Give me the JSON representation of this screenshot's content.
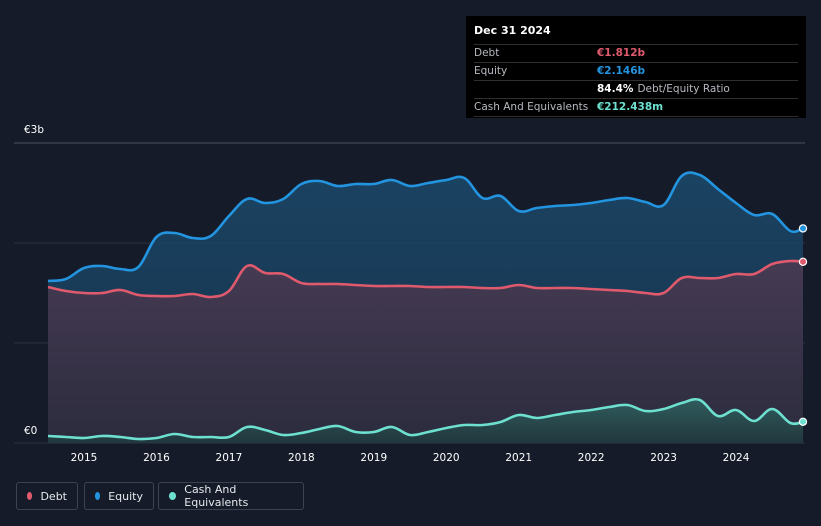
{
  "tooltip": {
    "date": "Dec 31 2024",
    "rows": [
      {
        "label": "Debt",
        "value": "€1.812b",
        "color": "#e05a6d"
      },
      {
        "label": "Equity",
        "value": "€2.146b",
        "color": "#2394df"
      },
      {
        "label": "",
        "value": "84.4%",
        "sub": "Debt/Equity Ratio",
        "color": "#ffffff"
      },
      {
        "label": "Cash And Equivalents",
        "value": "€212.438m",
        "color": "#6de0d0"
      }
    ]
  },
  "legend": {
    "debt": "Debt",
    "equity": "Equity",
    "cash": "Cash And Equivalents"
  },
  "colors": {
    "debt": "#e05a6d",
    "equity": "#2394df",
    "cash": "#6de0d0",
    "background": "#151b28"
  },
  "chart_data": {
    "type": "area",
    "ylabel_top": "€3b",
    "ylabel_bottom": "€0",
    "ylim": [
      0,
      2.8
    ],
    "xlim": [
      2014.5,
      2025.0
    ],
    "x_ticks": [
      "2015",
      "2016",
      "2017",
      "2018",
      "2019",
      "2020",
      "2021",
      "2022",
      "2023",
      "2024"
    ],
    "grid": true,
    "series": [
      {
        "name": "Equity",
        "x": [
          2014.5,
          2014.75,
          2015.0,
          2015.25,
          2015.5,
          2015.75,
          2016.0,
          2016.25,
          2016.5,
          2016.75,
          2017.0,
          2017.25,
          2017.5,
          2017.75,
          2018.0,
          2018.25,
          2018.5,
          2018.75,
          2019.0,
          2019.25,
          2019.5,
          2019.75,
          2020.0,
          2020.25,
          2020.5,
          2020.75,
          2021.0,
          2021.25,
          2021.5,
          2021.75,
          2022.0,
          2022.25,
          2022.5,
          2022.75,
          2023.0,
          2023.25,
          2023.5,
          2023.75,
          2024.0,
          2024.25,
          2024.5,
          2024.75,
          2025.0
        ],
        "y": [
          1.62,
          1.64,
          1.75,
          1.77,
          1.74,
          1.76,
          2.06,
          2.1,
          2.05,
          2.07,
          2.27,
          2.44,
          2.4,
          2.44,
          2.59,
          2.62,
          2.57,
          2.59,
          2.59,
          2.63,
          2.57,
          2.6,
          2.63,
          2.65,
          2.45,
          2.47,
          2.32,
          2.35,
          2.37,
          2.38,
          2.4,
          2.43,
          2.45,
          2.41,
          2.38,
          2.67,
          2.68,
          2.54,
          2.4,
          2.28,
          2.29,
          2.12,
          2.146
        ]
      },
      {
        "name": "Debt",
        "x": [
          2014.5,
          2014.75,
          2015.0,
          2015.25,
          2015.5,
          2015.75,
          2016.0,
          2016.25,
          2016.5,
          2016.75,
          2017.0,
          2017.25,
          2017.5,
          2017.75,
          2018.0,
          2018.25,
          2018.5,
          2018.75,
          2019.0,
          2019.25,
          2019.5,
          2019.75,
          2020.0,
          2020.25,
          2020.5,
          2020.75,
          2021.0,
          2021.25,
          2021.5,
          2021.75,
          2022.0,
          2022.25,
          2022.5,
          2022.75,
          2023.0,
          2023.25,
          2023.5,
          2023.75,
          2024.0,
          2024.25,
          2024.5,
          2024.75,
          2025.0
        ],
        "y": [
          1.56,
          1.52,
          1.5,
          1.5,
          1.53,
          1.48,
          1.47,
          1.47,
          1.49,
          1.46,
          1.52,
          1.77,
          1.7,
          1.69,
          1.6,
          1.59,
          1.59,
          1.58,
          1.57,
          1.57,
          1.57,
          1.56,
          1.56,
          1.56,
          1.55,
          1.55,
          1.58,
          1.55,
          1.55,
          1.55,
          1.54,
          1.53,
          1.52,
          1.5,
          1.5,
          1.65,
          1.65,
          1.65,
          1.69,
          1.69,
          1.79,
          1.82,
          1.812
        ]
      },
      {
        "name": "Cash And Equivalents",
        "x": [
          2014.5,
          2014.75,
          2015.0,
          2015.25,
          2015.5,
          2015.75,
          2016.0,
          2016.25,
          2016.5,
          2016.75,
          2017.0,
          2017.25,
          2017.5,
          2017.75,
          2018.0,
          2018.25,
          2018.5,
          2018.75,
          2019.0,
          2019.25,
          2019.5,
          2019.75,
          2020.0,
          2020.25,
          2020.5,
          2020.75,
          2021.0,
          2021.25,
          2021.5,
          2021.75,
          2022.0,
          2022.25,
          2022.5,
          2022.75,
          2023.0,
          2023.25,
          2023.5,
          2023.75,
          2024.0,
          2024.25,
          2024.5,
          2024.75,
          2025.0
        ],
        "y": [
          0.07,
          0.06,
          0.05,
          0.07,
          0.06,
          0.04,
          0.05,
          0.09,
          0.06,
          0.06,
          0.06,
          0.16,
          0.13,
          0.08,
          0.1,
          0.14,
          0.17,
          0.11,
          0.11,
          0.16,
          0.08,
          0.11,
          0.15,
          0.18,
          0.18,
          0.21,
          0.28,
          0.25,
          0.28,
          0.31,
          0.33,
          0.36,
          0.38,
          0.32,
          0.34,
          0.4,
          0.43,
          0.27,
          0.33,
          0.22,
          0.34,
          0.2,
          0.212
        ]
      }
    ]
  }
}
